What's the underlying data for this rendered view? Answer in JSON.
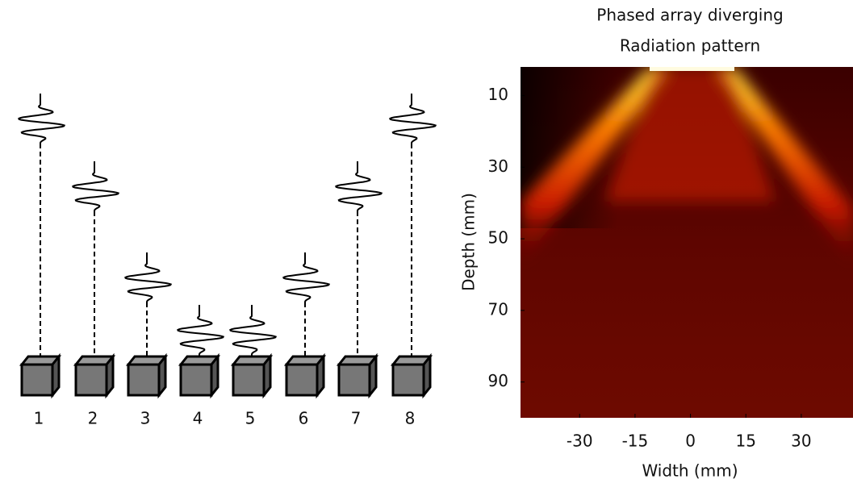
{
  "diagram": {
    "elements": [
      "1",
      "2",
      "3",
      "4",
      "5",
      "6",
      "7",
      "8"
    ]
  },
  "plot": {
    "title": [
      "Phased array diverging",
      "Radiation pattern"
    ],
    "xlabel": "Width (mm)",
    "ylabel": "Depth (mm)",
    "xlim": [
      -46,
      44
    ],
    "ylim": [
      2,
      100
    ],
    "xticks": [
      -30,
      -15,
      0,
      15,
      30
    ],
    "yticks": [
      10,
      30,
      50,
      70,
      90
    ]
  }
}
